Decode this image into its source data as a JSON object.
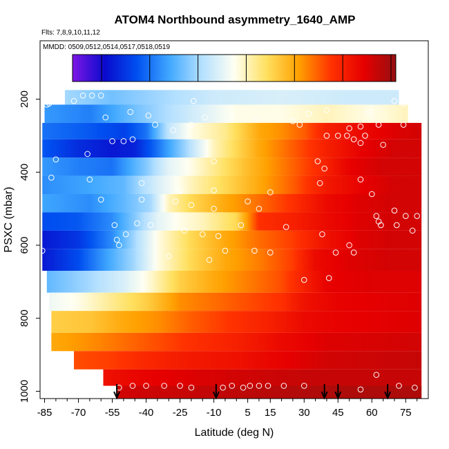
{
  "chart_data": {
    "type": "heatmap",
    "title": "ATOM4 Northbound asymmetry_1640_AMP",
    "subtitle_flights": "Flts: 7,8,9,10,11,12",
    "subtitle_dates": "MMDD: 0509,0512,0514,0517,0518,0519",
    "xlabel": "Latitude (deg N)",
    "ylabel": "PSXC (mbar)",
    "xlim": [
      -87,
      85
    ],
    "ylim": [
      1020,
      40
    ],
    "y_reversed": true,
    "x_ticks": [
      -85,
      -70,
      -55,
      -40,
      -25,
      -10,
      5,
      15,
      30,
      45,
      60,
      75
    ],
    "y_ticks": [
      200,
      400,
      600,
      800,
      1000
    ],
    "colorbar": {
      "min": 0.04,
      "max": 0.71,
      "ticks": [
        0.1,
        0.2,
        0.3,
        0.4,
        0.5,
        0.6,
        0.7
      ],
      "colors": [
        "#7d17e6",
        "#0a0acc",
        "#0050f0",
        "#40a8ff",
        "#b4e0ff",
        "#fffff2",
        "#ffe060",
        "#ffa000",
        "#ff3200",
        "#e60000",
        "#960f0f"
      ]
    },
    "flight_markers_latitude": [
      -53,
      -9,
      39,
      45,
      67
    ],
    "layers": [
      {
        "p_top": 175,
        "p_bot": 215,
        "lat_min": -76,
        "lat_max": 72,
        "stops": [
          [
            -76,
            0.3
          ],
          [
            -55,
            0.27
          ],
          [
            -40,
            0.29
          ],
          [
            -10,
            0.33
          ],
          [
            20,
            0.34
          ],
          [
            50,
            0.33
          ],
          [
            72,
            0.33
          ]
        ]
      },
      {
        "p_top": 215,
        "p_bot": 265,
        "lat_min": -85,
        "lat_max": 76,
        "stops": [
          [
            -85,
            0.23
          ],
          [
            -65,
            0.21
          ],
          [
            -45,
            0.27
          ],
          [
            -25,
            0.32
          ],
          [
            0,
            0.38
          ],
          [
            20,
            0.38
          ],
          [
            40,
            0.4
          ],
          [
            60,
            0.38
          ],
          [
            76,
            0.4
          ]
        ]
      },
      {
        "p_top": 265,
        "p_bot": 310,
        "lat_min": -86,
        "lat_max": 82,
        "stops": [
          [
            -86,
            0.2
          ],
          [
            -65,
            0.18
          ],
          [
            -50,
            0.16
          ],
          [
            -40,
            0.2
          ],
          [
            -30,
            0.32
          ],
          [
            -20,
            0.38
          ],
          [
            -5,
            0.42
          ],
          [
            10,
            0.5
          ],
          [
            20,
            0.52
          ],
          [
            30,
            0.55
          ],
          [
            40,
            0.6
          ],
          [
            55,
            0.63
          ],
          [
            70,
            0.65
          ],
          [
            82,
            0.66
          ]
        ]
      },
      {
        "p_top": 310,
        "p_bot": 360,
        "lat_min": -86,
        "lat_max": 82,
        "stops": [
          [
            -86,
            0.18
          ],
          [
            -70,
            0.14
          ],
          [
            -55,
            0.12
          ],
          [
            -45,
            0.13
          ],
          [
            -35,
            0.2
          ],
          [
            -22,
            0.3
          ],
          [
            -10,
            0.4
          ],
          [
            0,
            0.45
          ],
          [
            10,
            0.5
          ],
          [
            25,
            0.55
          ],
          [
            40,
            0.6
          ],
          [
            55,
            0.64
          ],
          [
            70,
            0.66
          ],
          [
            82,
            0.66
          ]
        ]
      },
      {
        "p_top": 360,
        "p_bot": 410,
        "lat_min": -86,
        "lat_max": 82,
        "stops": [
          [
            -86,
            0.23
          ],
          [
            -70,
            0.21
          ],
          [
            -55,
            0.2
          ],
          [
            -40,
            0.28
          ],
          [
            -30,
            0.35
          ],
          [
            -20,
            0.38
          ],
          [
            -10,
            0.42
          ],
          [
            5,
            0.48
          ],
          [
            20,
            0.53
          ],
          [
            35,
            0.58
          ],
          [
            50,
            0.64
          ],
          [
            65,
            0.66
          ],
          [
            82,
            0.66
          ]
        ]
      },
      {
        "p_top": 410,
        "p_bot": 460,
        "lat_min": -86,
        "lat_max": 82,
        "stops": [
          [
            -86,
            0.22
          ],
          [
            -65,
            0.24
          ],
          [
            -50,
            0.26
          ],
          [
            -35,
            0.34
          ],
          [
            -20,
            0.4
          ],
          [
            -5,
            0.45
          ],
          [
            10,
            0.5
          ],
          [
            25,
            0.55
          ],
          [
            40,
            0.61
          ],
          [
            55,
            0.64
          ],
          [
            70,
            0.66
          ],
          [
            82,
            0.66
          ]
        ]
      },
      {
        "p_top": 460,
        "p_bot": 510,
        "lat_min": -86,
        "lat_max": 82,
        "stops": [
          [
            -86,
            0.24
          ],
          [
            -65,
            0.22
          ],
          [
            -50,
            0.26
          ],
          [
            -38,
            0.3
          ],
          [
            -30,
            0.4
          ],
          [
            -20,
            0.45
          ],
          [
            -5,
            0.5
          ],
          [
            10,
            0.54
          ],
          [
            25,
            0.58
          ],
          [
            40,
            0.63
          ],
          [
            55,
            0.65
          ],
          [
            70,
            0.66
          ],
          [
            82,
            0.66
          ]
        ]
      },
      {
        "p_top": 510,
        "p_bot": 560,
        "lat_min": -86,
        "lat_max": 82,
        "stops": [
          [
            -86,
            0.17
          ],
          [
            -70,
            0.18
          ],
          [
            -55,
            0.22
          ],
          [
            -45,
            0.28
          ],
          [
            -35,
            0.35
          ],
          [
            -25,
            0.38
          ],
          [
            -15,
            0.4
          ],
          [
            0,
            0.45
          ],
          [
            10,
            0.58
          ],
          [
            25,
            0.6
          ],
          [
            40,
            0.63
          ],
          [
            55,
            0.65
          ],
          [
            70,
            0.66
          ],
          [
            82,
            0.66
          ]
        ]
      },
      {
        "p_top": 560,
        "p_bot": 610,
        "lat_min": -86,
        "lat_max": 82,
        "stops": [
          [
            -86,
            0.12
          ],
          [
            -70,
            0.15
          ],
          [
            -55,
            0.22
          ],
          [
            -45,
            0.3
          ],
          [
            -35,
            0.38
          ],
          [
            -20,
            0.45
          ],
          [
            -5,
            0.5
          ],
          [
            10,
            0.54
          ],
          [
            25,
            0.57
          ],
          [
            40,
            0.62
          ],
          [
            55,
            0.65
          ],
          [
            70,
            0.66
          ],
          [
            82,
            0.66
          ]
        ]
      },
      {
        "p_top": 610,
        "p_bot": 670,
        "lat_min": -86,
        "lat_max": 82,
        "stops": [
          [
            -86,
            0.12
          ],
          [
            -70,
            0.17
          ],
          [
            -55,
            0.25
          ],
          [
            -45,
            0.3
          ],
          [
            -35,
            0.38
          ],
          [
            -20,
            0.45
          ],
          [
            -5,
            0.5
          ],
          [
            10,
            0.53
          ],
          [
            25,
            0.57
          ],
          [
            35,
            0.63
          ],
          [
            50,
            0.65
          ],
          [
            70,
            0.66
          ],
          [
            82,
            0.66
          ]
        ]
      },
      {
        "p_top": 670,
        "p_bot": 730,
        "lat_min": -84,
        "lat_max": 82,
        "stops": [
          [
            -84,
            0.26
          ],
          [
            -65,
            0.3
          ],
          [
            -50,
            0.34
          ],
          [
            -40,
            0.38
          ],
          [
            -25,
            0.46
          ],
          [
            -10,
            0.5
          ],
          [
            5,
            0.53
          ],
          [
            20,
            0.56
          ],
          [
            30,
            0.6
          ],
          [
            40,
            0.64
          ],
          [
            60,
            0.65
          ],
          [
            82,
            0.65
          ]
        ]
      },
      {
        "p_top": 730,
        "p_bot": 780,
        "lat_min": -83,
        "lat_max": 82,
        "stops": [
          [
            -83,
            0.36
          ],
          [
            -70,
            0.38
          ],
          [
            -55,
            0.42
          ],
          [
            -40,
            0.46
          ],
          [
            -25,
            0.52
          ],
          [
            -10,
            0.54
          ],
          [
            5,
            0.56
          ],
          [
            20,
            0.58
          ],
          [
            30,
            0.62
          ],
          [
            45,
            0.64
          ],
          [
            82,
            0.65
          ]
        ]
      },
      {
        "p_top": 780,
        "p_bot": 840,
        "lat_min": -82,
        "lat_max": 82,
        "stops": [
          [
            -82,
            0.46
          ],
          [
            -65,
            0.47
          ],
          [
            -50,
            0.5
          ],
          [
            -35,
            0.52
          ],
          [
            -20,
            0.55
          ],
          [
            0,
            0.58
          ],
          [
            15,
            0.6
          ],
          [
            30,
            0.63
          ],
          [
            45,
            0.64
          ],
          [
            82,
            0.65
          ]
        ]
      },
      {
        "p_top": 840,
        "p_bot": 890,
        "lat_min": -82,
        "lat_max": 82,
        "stops": [
          [
            -82,
            0.5
          ],
          [
            -65,
            0.52
          ],
          [
            -50,
            0.54
          ],
          [
            -35,
            0.56
          ],
          [
            -20,
            0.58
          ],
          [
            0,
            0.6
          ],
          [
            20,
            0.63
          ],
          [
            40,
            0.65
          ],
          [
            82,
            0.66
          ]
        ]
      },
      {
        "p_top": 890,
        "p_bot": 940,
        "lat_min": -72,
        "lat_max": 82,
        "stops": [
          [
            -72,
            0.56
          ],
          [
            -55,
            0.57
          ],
          [
            -40,
            0.59
          ],
          [
            -20,
            0.61
          ],
          [
            0,
            0.62
          ],
          [
            20,
            0.64
          ],
          [
            40,
            0.66
          ],
          [
            82,
            0.67
          ]
        ]
      },
      {
        "p_top": 940,
        "p_bot": 985,
        "lat_min": -59,
        "lat_max": 82,
        "stops": [
          [
            -59,
            0.62
          ],
          [
            -40,
            0.64
          ],
          [
            -20,
            0.65
          ],
          [
            0,
            0.66
          ],
          [
            30,
            0.67
          ],
          [
            60,
            0.67
          ],
          [
            82,
            0.67
          ]
        ]
      },
      {
        "p_top": 985,
        "p_bot": 1020,
        "lat_min": -53,
        "lat_max": 82,
        "stops": [
          [
            -53,
            0.66
          ],
          [
            -20,
            0.67
          ],
          [
            10,
            0.68
          ],
          [
            40,
            0.69
          ],
          [
            82,
            0.69
          ]
        ]
      }
    ],
    "profile_points": [
      [
        -68,
        190
      ],
      [
        -64,
        190
      ],
      [
        -60,
        190
      ],
      [
        -78,
        205
      ],
      [
        -84,
        215
      ],
      [
        -83,
        212
      ],
      [
        -72,
        205
      ],
      [
        -47,
        235
      ],
      [
        -39,
        245
      ],
      [
        -19,
        205
      ],
      [
        -14,
        250
      ],
      [
        -2,
        250
      ],
      [
        9,
        255
      ],
      [
        25,
        260
      ],
      [
        32,
        240
      ],
      [
        40,
        230
      ],
      [
        59,
        235
      ],
      [
        70,
        205
      ],
      [
        74,
        212
      ],
      [
        74,
        270
      ],
      [
        63,
        270
      ],
      [
        55,
        275
      ],
      [
        50,
        280
      ],
      [
        -58,
        250
      ],
      [
        -20,
        270
      ],
      [
        -36,
        270
      ],
      [
        -28,
        285
      ],
      [
        28,
        270
      ],
      [
        -55,
        315
      ],
      [
        -50,
        315
      ],
      [
        40,
        300
      ],
      [
        45,
        300
      ],
      [
        49,
        300
      ],
      [
        52,
        310
      ],
      [
        55,
        320
      ],
      [
        57,
        300
      ],
      [
        65,
        325
      ],
      [
        -80,
        365
      ],
      [
        -66,
        350
      ],
      [
        -46,
        310
      ],
      [
        -10,
        370
      ],
      [
        36,
        370
      ],
      [
        39,
        390
      ],
      [
        -82,
        415
      ],
      [
        -65,
        420
      ],
      [
        -42,
        430
      ],
      [
        -25,
        450
      ],
      [
        -10,
        450
      ],
      [
        15,
        455
      ],
      [
        37,
        430
      ],
      [
        55,
        420
      ],
      [
        60,
        460
      ],
      [
        -60,
        475
      ],
      [
        -42,
        475
      ],
      [
        -27,
        480
      ],
      [
        -20,
        490
      ],
      [
        -10,
        500
      ],
      [
        5,
        480
      ],
      [
        10,
        500
      ],
      [
        -54,
        545
      ],
      [
        -49,
        570
      ],
      [
        -44,
        540
      ],
      [
        -38,
        545
      ],
      [
        -23,
        560
      ],
      [
        2,
        545
      ],
      [
        22,
        550
      ],
      [
        -15,
        570
      ],
      [
        -8,
        575
      ],
      [
        -53,
        585
      ],
      [
        -52,
        600
      ],
      [
        38,
        570
      ],
      [
        64,
        545
      ],
      [
        71,
        545
      ],
      [
        78,
        560
      ],
      [
        -86,
        615
      ],
      [
        -5,
        615
      ],
      [
        8,
        615
      ],
      [
        15,
        620
      ],
      [
        -30,
        630
      ],
      [
        44,
        620
      ],
      [
        50,
        600
      ],
      [
        52,
        620
      ],
      [
        62,
        520
      ],
      [
        63,
        535
      ],
      [
        70,
        505
      ],
      [
        75,
        520
      ],
      [
        80,
        520
      ],
      [
        -12,
        640
      ],
      [
        30,
        695
      ],
      [
        41,
        690
      ],
      [
        -52,
        990
      ],
      [
        -46,
        985
      ],
      [
        -40,
        985
      ],
      [
        -32,
        985
      ],
      [
        -25,
        985
      ],
      [
        -20,
        990
      ],
      [
        -6,
        990
      ],
      [
        -2,
        985
      ],
      [
        3,
        990
      ],
      [
        6,
        985
      ],
      [
        10,
        985
      ],
      [
        14,
        985
      ],
      [
        21,
        985
      ],
      [
        30,
        985
      ],
      [
        55,
        995
      ],
      [
        62,
        955
      ],
      [
        72,
        985
      ],
      [
        79,
        990
      ]
    ]
  }
}
